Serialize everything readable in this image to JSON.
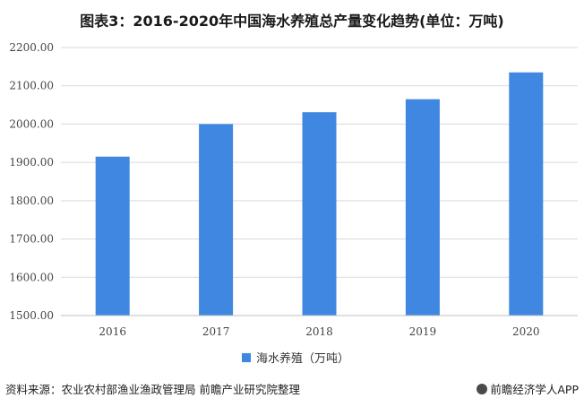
{
  "title": "图表3：2016-2020年中国海水养殖总产量变化趋势(单位：万吨)",
  "footer": {
    "source": "资料来源：农业农村部渔业渔政管理局 前瞻产业研究院整理",
    "brand": "前瞻经济学人APP"
  },
  "colors": {
    "bar": "#3f87e0",
    "grid": "#d9d9d9",
    "axis": "#bfbfbf"
  },
  "chart_data": {
    "type": "bar",
    "categories": [
      "2016",
      "2017",
      "2018",
      "2019",
      "2020"
    ],
    "series": [
      {
        "name": "海水养殖（万吨）",
        "values": [
          1915,
          2000,
          2031,
          2065,
          2135
        ]
      }
    ],
    "ylim": [
      1500,
      2200
    ],
    "yticks": [
      1500,
      1600,
      1700,
      1800,
      1900,
      2000,
      2100,
      2200
    ],
    "ytick_labels": [
      "1500.00",
      "1600.00",
      "1700.00",
      "1800.00",
      "1900.00",
      "2000.00",
      "2100.00",
      "2200.00"
    ],
    "grid": true,
    "legend": "bottom-center"
  }
}
